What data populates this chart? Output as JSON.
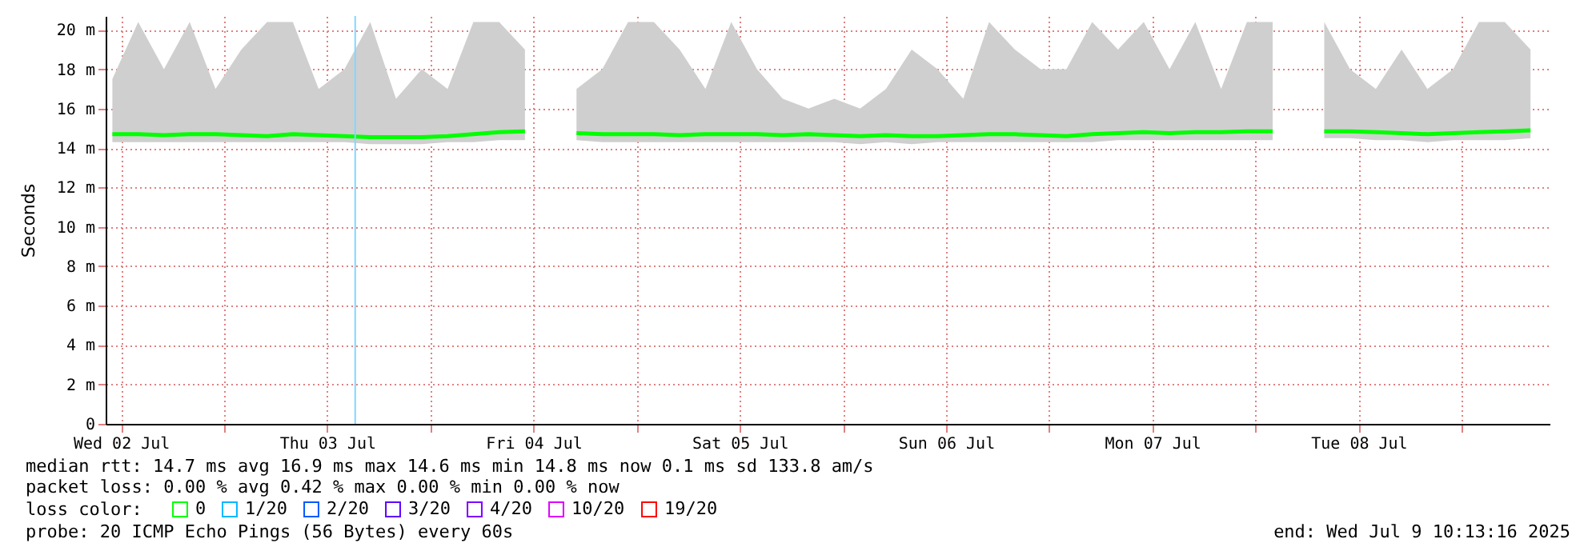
{
  "chart_data": {
    "type": "line",
    "ylabel": "Seconds",
    "x": [
      "2025-07-02T11:00",
      "2025-07-02T14:00",
      "2025-07-02T17:00",
      "2025-07-02T20:00",
      "2025-07-02T23:00",
      "2025-07-03T02:00",
      "2025-07-03T05:00",
      "2025-07-03T08:00",
      "2025-07-03T11:00",
      "2025-07-03T14:00",
      "2025-07-03T17:00",
      "2025-07-03T20:00",
      "2025-07-03T23:00",
      "2025-07-04T02:00",
      "2025-07-04T05:00",
      "2025-07-04T08:00",
      "2025-07-04T11:00",
      "2025-07-04T14:00",
      "2025-07-04T17:00",
      "2025-07-04T20:00",
      "2025-07-04T23:00",
      "2025-07-05T02:00",
      "2025-07-05T05:00",
      "2025-07-05T08:00",
      "2025-07-05T11:00",
      "2025-07-05T14:00",
      "2025-07-05T17:00",
      "2025-07-05T20:00",
      "2025-07-05T23:00",
      "2025-07-06T02:00",
      "2025-07-06T05:00",
      "2025-07-06T08:00",
      "2025-07-06T11:00",
      "2025-07-06T14:00",
      "2025-07-06T17:00",
      "2025-07-06T20:00",
      "2025-07-06T23:00",
      "2025-07-07T02:00",
      "2025-07-07T05:00",
      "2025-07-07T08:00",
      "2025-07-07T11:00",
      "2025-07-07T14:00",
      "2025-07-07T17:00",
      "2025-07-07T20:00",
      "2025-07-07T23:00",
      "2025-07-08T02:00",
      "2025-07-08T05:00",
      "2025-07-08T08:00",
      "2025-07-08T11:00",
      "2025-07-08T14:00",
      "2025-07-08T17:00",
      "2025-07-08T20:00",
      "2025-07-08T23:00",
      "2025-07-09T02:00",
      "2025-07-09T05:00",
      "2025-07-09T08:00"
    ],
    "series": [
      {
        "name": "0",
        "color": "#00ff00",
        "values": [
          14.7,
          14.7,
          14.65,
          14.7,
          14.7,
          14.65,
          14.6,
          14.7,
          14.65,
          14.6,
          14.55,
          14.55,
          14.55,
          14.6,
          14.7,
          14.8,
          14.85,
          null,
          14.75,
          14.7,
          14.7,
          14.7,
          14.65,
          14.7,
          14.7,
          14.7,
          14.65,
          14.7,
          14.65,
          14.6,
          14.65,
          14.6,
          14.6,
          14.65,
          14.7,
          14.7,
          14.65,
          14.6,
          14.7,
          14.75,
          14.8,
          14.75,
          14.8,
          14.8,
          14.85,
          14.85,
          null,
          14.85,
          14.85,
          14.8,
          14.75,
          14.7,
          14.75,
          14.8,
          14.85,
          14.9
        ],
        "lower": [
          14.3,
          14.3,
          14.3,
          14.3,
          14.3,
          14.3,
          14.3,
          14.3,
          14.3,
          14.3,
          14.2,
          14.2,
          14.2,
          14.3,
          14.3,
          14.4,
          14.4,
          null,
          14.4,
          14.3,
          14.3,
          14.3,
          14.3,
          14.3,
          14.3,
          14.3,
          14.3,
          14.3,
          14.3,
          14.2,
          14.3,
          14.2,
          14.3,
          14.3,
          14.3,
          14.3,
          14.3,
          14.3,
          14.3,
          14.4,
          14.4,
          14.4,
          14.4,
          14.4,
          14.4,
          14.4,
          null,
          14.5,
          14.5,
          14.4,
          14.4,
          14.3,
          14.4,
          14.4,
          14.4,
          14.5
        ],
        "upper": [
          17.5,
          20.4,
          18,
          20.4,
          17,
          19,
          20.4,
          20.4,
          17,
          18,
          20.4,
          16.5,
          18,
          17,
          20.4,
          20.4,
          19,
          null,
          17,
          18,
          20.4,
          20.4,
          19,
          17,
          20.4,
          18,
          16.5,
          16,
          16.5,
          16,
          17,
          19,
          18,
          16.5,
          20.4,
          19,
          18,
          18,
          20.4,
          19,
          20.4,
          18,
          20.4,
          17,
          20.4,
          20.4,
          null,
          20.4,
          18,
          17,
          19,
          17,
          18,
          20.4,
          20.4,
          19
        ]
      },
      {
        "name": "1/20",
        "color": "#00b8ff",
        "values": [
          null,
          null,
          null,
          null,
          null,
          null,
          null,
          null,
          null,
          null,
          null,
          null,
          null,
          null,
          null,
          null,
          null,
          null,
          null,
          null,
          null,
          null,
          null,
          null,
          null,
          null,
          null,
          null,
          null,
          null,
          null,
          null,
          null,
          null,
          null,
          null,
          null,
          null,
          null,
          null,
          null,
          null,
          null,
          null,
          null,
          null,
          null,
          null,
          null,
          null,
          null,
          null,
          null,
          null,
          null,
          null
        ]
      },
      {
        "name": "2/20",
        "color": "#0059ff",
        "values": [
          null,
          null,
          null,
          null,
          null,
          null,
          null,
          null,
          null,
          null,
          null,
          null,
          null,
          null,
          null,
          null,
          null,
          null,
          null,
          null,
          null,
          null,
          null,
          null,
          null,
          null,
          null,
          null,
          null,
          null,
          null,
          null,
          null,
          null,
          null,
          null,
          null,
          null,
          null,
          null,
          null,
          null,
          null,
          null,
          null,
          null,
          null,
          null,
          null,
          null,
          null,
          null,
          null,
          null,
          null,
          null
        ]
      },
      {
        "name": "3/20",
        "color": "#5e00ff",
        "values": [
          null,
          null,
          null,
          null,
          null,
          null,
          null,
          null,
          null,
          null,
          null,
          null,
          null,
          null,
          null,
          null,
          null,
          null,
          null,
          null,
          null,
          null,
          null,
          null,
          null,
          null,
          null,
          null,
          null,
          null,
          null,
          null,
          null,
          null,
          null,
          null,
          null,
          null,
          null,
          null,
          null,
          null,
          null,
          null,
          null,
          null,
          null,
          null,
          null,
          null,
          null,
          null,
          null,
          null,
          null,
          null
        ]
      },
      {
        "name": "4/20",
        "color": "#7e00ff",
        "values": [
          null,
          null,
          null,
          null,
          null,
          null,
          null,
          null,
          null,
          null,
          null,
          null,
          null,
          null,
          null,
          null,
          null,
          null,
          null,
          null,
          null,
          null,
          null,
          null,
          null,
          null,
          null,
          null,
          null,
          null,
          null,
          null,
          null,
          null,
          null,
          null,
          null,
          null,
          null,
          null,
          null,
          null,
          null,
          null,
          null,
          null,
          null,
          null,
          null,
          null,
          null,
          null,
          null,
          null,
          null,
          null
        ]
      },
      {
        "name": "10/20",
        "color": "#dd00ff",
        "values": [
          null,
          null,
          null,
          null,
          null,
          null,
          null,
          null,
          null,
          null,
          null,
          null,
          null,
          null,
          null,
          null,
          null,
          null,
          null,
          null,
          null,
          null,
          null,
          null,
          null,
          null,
          null,
          null,
          null,
          null,
          null,
          null,
          null,
          null,
          null,
          null,
          null,
          null,
          null,
          null,
          null,
          null,
          null,
          null,
          null,
          null,
          null,
          null,
          null,
          null,
          null,
          null,
          null,
          null,
          null,
          null
        ]
      },
      {
        "name": "19/20",
        "color": "#ff0000",
        "values": [
          null,
          null,
          null,
          null,
          null,
          null,
          null,
          null,
          null,
          null,
          null,
          null,
          null,
          null,
          null,
          null,
          null,
          null,
          null,
          null,
          null,
          null,
          null,
          null,
          null,
          null,
          null,
          null,
          null,
          null,
          null,
          null,
          null,
          null,
          null,
          null,
          null,
          null,
          null,
          null,
          null,
          null,
          null,
          null,
          null,
          null,
          null,
          null,
          null,
          null,
          null,
          null,
          null,
          null,
          null,
          null
        ]
      }
    ],
    "legend_title": "loss color:",
    "legend": "bottom left",
    "xlim": [
      "2025-07-02T10:13",
      "2025-07-09T10:13"
    ],
    "xticks": [
      {
        "value": "2025-07-02T12:00",
        "label": "Wed 02 Jul"
      },
      {
        "value": "2025-07-03T00:00",
        "label": null
      },
      {
        "value": "2025-07-03T12:00",
        "label": "Thu 03 Jul"
      },
      {
        "value": "2025-07-04T00:00",
        "label": null
      },
      {
        "value": "2025-07-04T12:00",
        "label": "Fri 04 Jul"
      },
      {
        "value": "2025-07-05T00:00",
        "label": null
      },
      {
        "value": "2025-07-05T12:00",
        "label": "Sat 05 Jul"
      },
      {
        "value": "2025-07-06T00:00",
        "label": null
      },
      {
        "value": "2025-07-06T12:00",
        "label": "Sun 06 Jul"
      },
      {
        "value": "2025-07-07T00:00",
        "label": null
      },
      {
        "value": "2025-07-07T12:00",
        "label": "Mon 07 Jul"
      },
      {
        "value": "2025-07-08T00:00",
        "label": null
      },
      {
        "value": "2025-07-08T12:00",
        "label": "Tue 08 Jul"
      },
      {
        "value": "2025-07-09T00:00",
        "label": null
      }
    ],
    "ylim": [
      0,
      20.7
    ],
    "yticks": [
      0,
      {
        "value": 2,
        "label": "2 m"
      },
      {
        "value": 4,
        "label": "4 m"
      },
      {
        "value": 6,
        "label": "6 m"
      },
      {
        "value": 8,
        "label": "8 m"
      },
      {
        "value": 10,
        "label": "10 m"
      },
      {
        "value": 12,
        "label": "12 m"
      },
      {
        "value": 14,
        "label": "14 m"
      },
      {
        "value": 16,
        "label": "16 m"
      },
      {
        "value": 18,
        "label": "18 m"
      },
      {
        "value": 20,
        "label": "20 m"
      }
    ],
    "grid": true,
    "ref_lines": [
      {
        "axis": "x",
        "value": "2025-07-03T15:15",
        "color": "#80d8ff"
      }
    ],
    "annotations": [
      "median rtt:  14.7 ms avg  16.9 ms max  14.6 ms min  14.8 ms now  0.1 ms sd  133.8   am/s",
      "packet loss: 0.00 % avg  0.42 % max  0.00 % min  0.00 % now",
      "probe:       20 ICMP Echo Pings (56 Bytes) every 60s",
      "end: Wed Jul  9 10:13:16 2025"
    ]
  }
}
